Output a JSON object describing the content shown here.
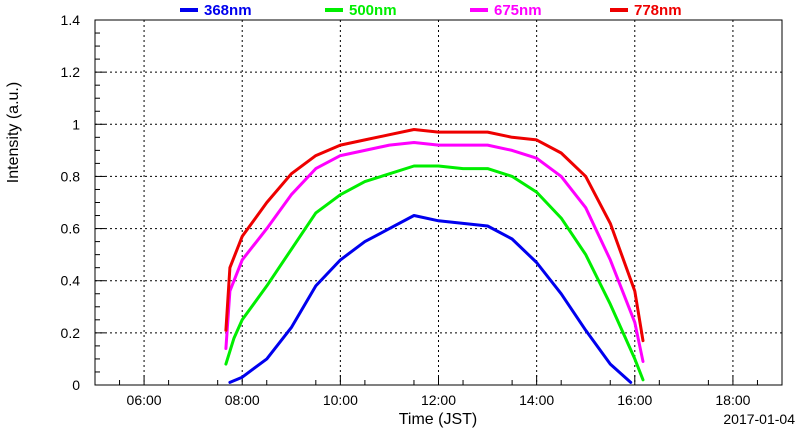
{
  "chart_data": {
    "type": "line",
    "title": "",
    "xlabel": "Time (JST)",
    "ylabel": "Intensity (a.u.)",
    "date": "2017-01-04",
    "xlim": [
      "05:00",
      "19:00"
    ],
    "ylim": [
      0,
      1.4
    ],
    "x_ticks": [
      "06:00",
      "08:00",
      "10:00",
      "12:00",
      "14:00",
      "16:00",
      "18:00"
    ],
    "y_ticks": [
      "0",
      "0.2",
      "0.4",
      "0.6",
      "0.8",
      "1",
      "1.2",
      "1.4"
    ],
    "grid": true,
    "legend_position": "top",
    "series": [
      {
        "name": "368nm",
        "color": "#0000ee",
        "points": [
          [
            "07:45",
            0.01
          ],
          [
            "08:00",
            0.03
          ],
          [
            "08:30",
            0.1
          ],
          [
            "09:00",
            0.22
          ],
          [
            "09:30",
            0.38
          ],
          [
            "10:00",
            0.48
          ],
          [
            "10:30",
            0.55
          ],
          [
            "11:00",
            0.6
          ],
          [
            "11:30",
            0.65
          ],
          [
            "12:00",
            0.63
          ],
          [
            "12:30",
            0.62
          ],
          [
            "13:00",
            0.61
          ],
          [
            "13:30",
            0.56
          ],
          [
            "14:00",
            0.47
          ],
          [
            "14:30",
            0.35
          ],
          [
            "15:00",
            0.21
          ],
          [
            "15:30",
            0.08
          ],
          [
            "15:55",
            0.01
          ]
        ]
      },
      {
        "name": "500nm",
        "color": "#00ee00",
        "points": [
          [
            "07:40",
            0.08
          ],
          [
            "07:50",
            0.18
          ],
          [
            "08:00",
            0.25
          ],
          [
            "08:30",
            0.38
          ],
          [
            "09:00",
            0.52
          ],
          [
            "09:30",
            0.66
          ],
          [
            "10:00",
            0.73
          ],
          [
            "10:30",
            0.78
          ],
          [
            "11:00",
            0.81
          ],
          [
            "11:30",
            0.84
          ],
          [
            "12:00",
            0.84
          ],
          [
            "12:30",
            0.83
          ],
          [
            "13:00",
            0.83
          ],
          [
            "13:30",
            0.8
          ],
          [
            "14:00",
            0.74
          ],
          [
            "14:30",
            0.64
          ],
          [
            "15:00",
            0.5
          ],
          [
            "15:30",
            0.31
          ],
          [
            "16:00",
            0.1
          ],
          [
            "16:10",
            0.02
          ]
        ]
      },
      {
        "name": "675nm",
        "color": "#ff00ff",
        "points": [
          [
            "07:40",
            0.14
          ],
          [
            "07:45",
            0.36
          ],
          [
            "08:00",
            0.48
          ],
          [
            "08:30",
            0.6
          ],
          [
            "09:00",
            0.73
          ],
          [
            "09:30",
            0.83
          ],
          [
            "10:00",
            0.88
          ],
          [
            "10:30",
            0.9
          ],
          [
            "11:00",
            0.92
          ],
          [
            "11:30",
            0.93
          ],
          [
            "12:00",
            0.92
          ],
          [
            "12:30",
            0.92
          ],
          [
            "13:00",
            0.92
          ],
          [
            "13:30",
            0.9
          ],
          [
            "14:00",
            0.87
          ],
          [
            "14:30",
            0.8
          ],
          [
            "15:00",
            0.68
          ],
          [
            "15:30",
            0.48
          ],
          [
            "16:00",
            0.24
          ],
          [
            "16:10",
            0.09
          ]
        ]
      },
      {
        "name": "778nm",
        "color": "#ee0000",
        "points": [
          [
            "07:40",
            0.21
          ],
          [
            "07:45",
            0.45
          ],
          [
            "08:00",
            0.57
          ],
          [
            "08:30",
            0.7
          ],
          [
            "09:00",
            0.81
          ],
          [
            "09:30",
            0.88
          ],
          [
            "10:00",
            0.92
          ],
          [
            "10:30",
            0.94
          ],
          [
            "11:00",
            0.96
          ],
          [
            "11:30",
            0.98
          ],
          [
            "12:00",
            0.97
          ],
          [
            "12:30",
            0.97
          ],
          [
            "13:00",
            0.97
          ],
          [
            "13:30",
            0.95
          ],
          [
            "14:00",
            0.94
          ],
          [
            "14:30",
            0.89
          ],
          [
            "15:00",
            0.8
          ],
          [
            "15:30",
            0.62
          ],
          [
            "16:00",
            0.36
          ],
          [
            "16:10",
            0.17
          ]
        ]
      }
    ]
  }
}
